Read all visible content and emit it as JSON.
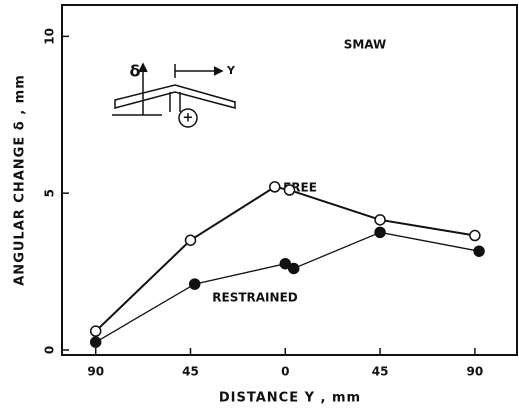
{
  "chart_data": {
    "type": "line",
    "xlabel": "DISTANCE  Y , mm",
    "ylabel": "ANGULAR CHANGE  δ , mm",
    "annotations": [
      "SMAW",
      "FREE",
      "RESTRAINED"
    ],
    "inset_labels": [
      "δ",
      "Y",
      "+"
    ],
    "xlim": [
      -106,
      110
    ],
    "ylim": [
      -0.16,
      11.0
    ],
    "xticks": [
      {
        "value": -90,
        "label": "90"
      },
      {
        "value": -45,
        "label": "45"
      },
      0,
      45,
      90
    ],
    "yticks": [
      0,
      5,
      10
    ],
    "series": [
      {
        "name": "FREE",
        "color": "#111111",
        "marker": "open",
        "x": [
          -90,
          -45,
          -5,
          2,
          45,
          90
        ],
        "values": [
          0.6,
          3.5,
          5.2,
          5.1,
          4.15,
          3.65
        ]
      },
      {
        "name": "RESTRAINED",
        "color": "#111111",
        "marker": "filled",
        "x": [
          -90,
          -43,
          0,
          4,
          45,
          92
        ],
        "values": [
          0.25,
          2.1,
          2.75,
          2.6,
          3.75,
          3.15
        ]
      }
    ]
  }
}
